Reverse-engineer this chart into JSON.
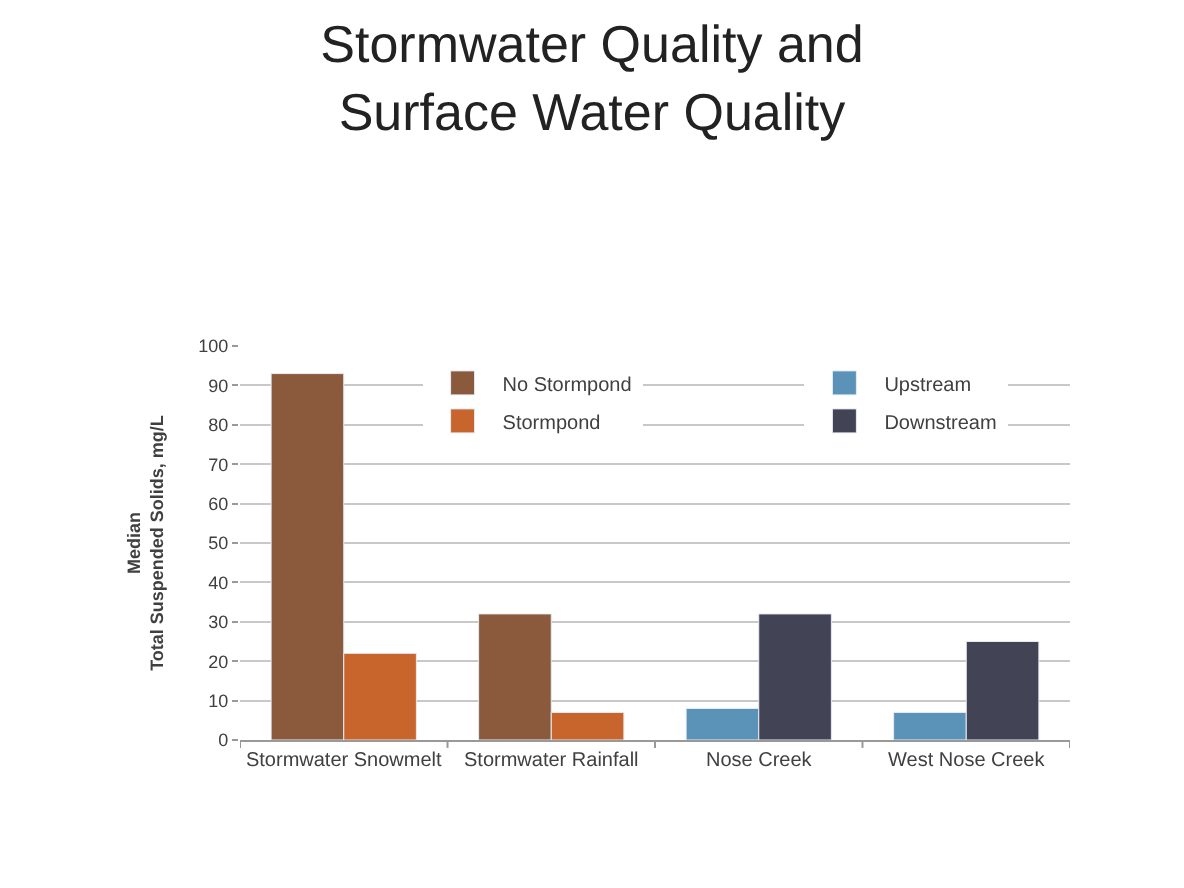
{
  "chart_data": {
    "type": "bar",
    "title": "Stormwater Quality and Surface Water Quality",
    "ylabel": "Median\nTotal Suspended Solids, mg/L",
    "categories": [
      "Stormwater Snowmelt",
      "Stormwater Rainfall",
      "Nose Creek",
      "West Nose Creek"
    ],
    "series": [
      {
        "name": "No Stormpond",
        "color": "#8b5a3c",
        "values": [
          93,
          32,
          null,
          null
        ]
      },
      {
        "name": "Stormpond",
        "color": "#c8652c",
        "values": [
          22,
          7,
          null,
          null
        ]
      },
      {
        "name": "Upstream",
        "color": "#5b93b8",
        "values": [
          null,
          null,
          8,
          7
        ]
      },
      {
        "name": "Downstream",
        "color": "#424355",
        "values": [
          null,
          null,
          32,
          25
        ]
      }
    ],
    "ylim": [
      0,
      100
    ],
    "yticks": [
      0,
      10,
      20,
      30,
      40,
      50,
      60,
      70,
      80,
      90,
      100
    ],
    "grid": "y",
    "legend": "top"
  }
}
